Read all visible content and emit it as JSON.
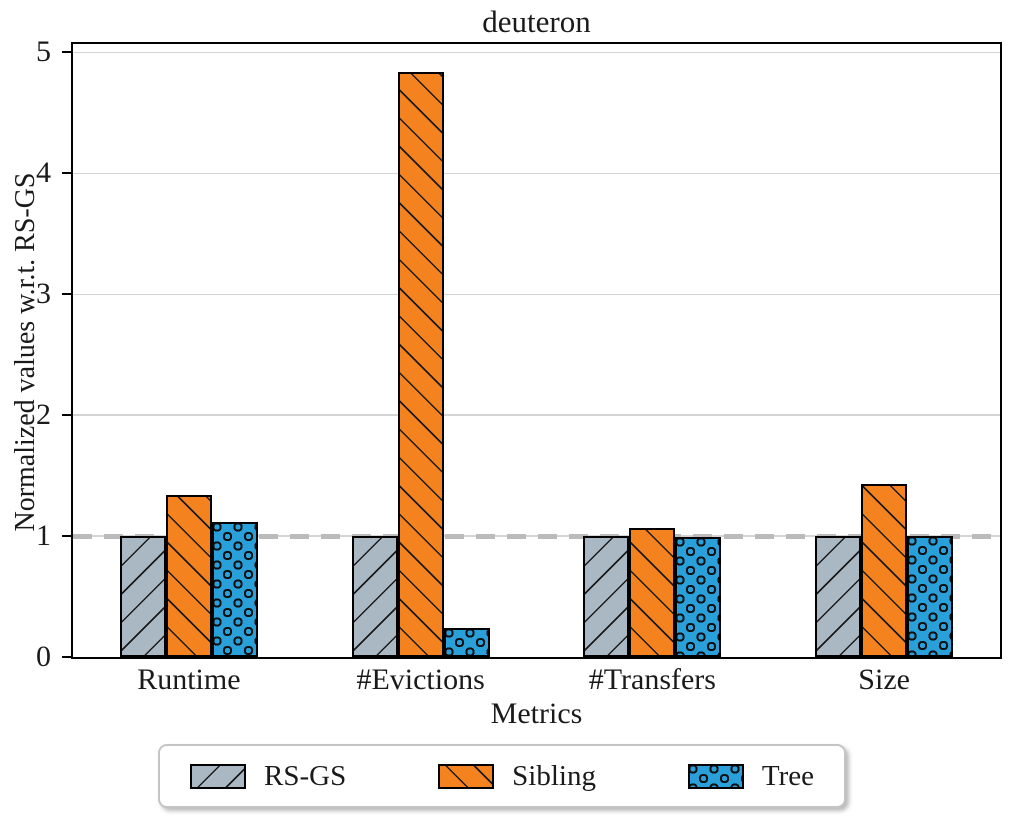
{
  "title": "deuteron",
  "chart_data": {
    "type": "bar",
    "title": "deuteron",
    "xlabel": "Metrics",
    "ylabel": "Normalized values w.r.t. RS-GS",
    "categories": [
      "Runtime",
      "#Evictions",
      "#Transfers",
      "Size"
    ],
    "series": [
      {
        "name": "RS-GS",
        "color": "#A9B8C2",
        "hatch": "/",
        "values": [
          1.0,
          1.0,
          1.0,
          1.0
        ]
      },
      {
        "name": "Sibling",
        "color": "#F4821F",
        "hatch": "\\",
        "values": [
          1.34,
          4.84,
          1.07,
          1.43
        ]
      },
      {
        "name": "Tree",
        "color": "#2AA0DB",
        "hatch": "o",
        "values": [
          1.12,
          0.24,
          0.99,
          1.0
        ]
      }
    ],
    "yticks": [
      0,
      1,
      2,
      3,
      4,
      5
    ],
    "ylim": [
      0,
      5.07
    ],
    "grid": true,
    "reference_line": {
      "y": 1.0,
      "style": "dashed",
      "color": "#BBBBBB"
    },
    "legend_position": "bottom",
    "colors": {
      "bar_edge": "#000000",
      "gridline": "#D4D4D4",
      "dashed_line": "#BBBBBB"
    }
  }
}
